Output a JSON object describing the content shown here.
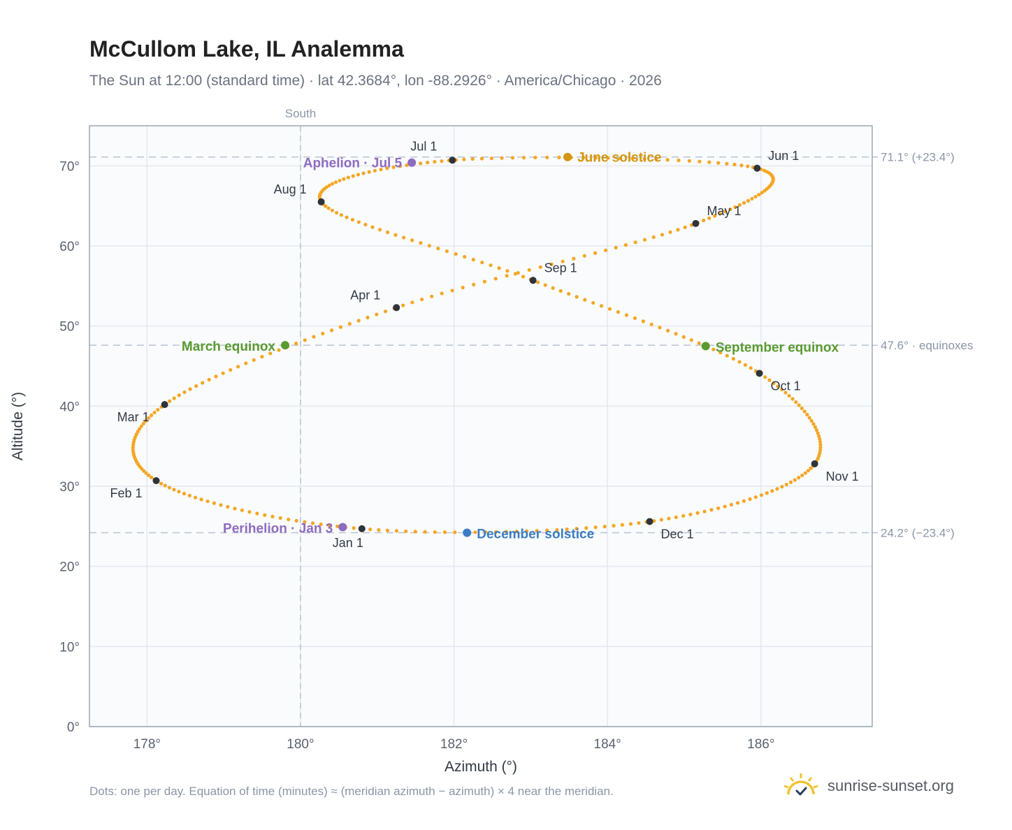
{
  "title": "McCullom Lake, IL Analemma",
  "subtitle": "The Sun at 12:00 (standard time) · lat 42.3684°, lon -88.2926° · America/Chicago · 2026",
  "footnote": "Dots: one per day. Equation of time (minutes) ≈ (meridian azimuth − azimuth) × 4 near the meridian.",
  "brand": "sunrise-sunset.org",
  "colors": {
    "curve": "#f5a623",
    "month_marker": "#2f343b",
    "solstice_june": "#d4950f",
    "solstice_december": "#3b7dc4",
    "equinox": "#5a9a2f",
    "apsis": "#8e6bbf",
    "grid": "#e4e8ee",
    "refline": "#b9c4d2",
    "frame": "#9aa6b5",
    "plot_bg": "#f9fbfd"
  },
  "chart_data": {
    "type": "scatter",
    "title": "McCullom Lake, IL Analemma",
    "xlabel": "Azimuth (°)",
    "ylabel": "Altitude (°)",
    "xlim": [
      177.25,
      187.45
    ],
    "ylim": [
      0,
      75
    ],
    "x_ticks": [
      178,
      180,
      182,
      184,
      186
    ],
    "x_tick_labels": [
      "178°",
      "180°",
      "182°",
      "184°",
      "186°"
    ],
    "y_ticks": [
      0,
      10,
      20,
      30,
      40,
      50,
      60,
      70
    ],
    "y_tick_labels": [
      "0°",
      "10°",
      "20°",
      "30°",
      "40°",
      "50°",
      "60°",
      "70°"
    ],
    "grid": true,
    "south_azimuth": 180,
    "south_label": "South",
    "reference_lines": [
      {
        "altitude": 71.1,
        "label": "71.1° (+23.4°)"
      },
      {
        "altitude": 47.6,
        "label": "47.6° · equinoxes"
      },
      {
        "altitude": 24.2,
        "label": "24.2° (−23.4°)"
      }
    ],
    "analemma_days": 365,
    "month_markers": [
      {
        "label": "Jan 1",
        "azimuth": 180.8,
        "altitude": 24.7
      },
      {
        "label": "Feb 1",
        "azimuth": 178.12,
        "altitude": 30.7
      },
      {
        "label": "Mar 1",
        "azimuth": 178.23,
        "altitude": 40.2
      },
      {
        "label": "Apr 1",
        "azimuth": 181.25,
        "altitude": 52.3
      },
      {
        "label": "May 1",
        "azimuth": 185.15,
        "altitude": 62.8
      },
      {
        "label": "Jun 1",
        "azimuth": 185.95,
        "altitude": 69.7
      },
      {
        "label": "Jul 1",
        "azimuth": 181.98,
        "altitude": 70.7
      },
      {
        "label": "Aug 1",
        "azimuth": 180.27,
        "altitude": 65.5
      },
      {
        "label": "Sep 1",
        "azimuth": 183.03,
        "altitude": 55.7
      },
      {
        "label": "Oct 1",
        "azimuth": 185.98,
        "altitude": 44.1
      },
      {
        "label": "Nov 1",
        "azimuth": 186.7,
        "altitude": 32.8
      },
      {
        "label": "Dec 1",
        "azimuth": 184.55,
        "altitude": 25.6
      }
    ],
    "events": [
      {
        "label": "June solstice",
        "azimuth": 183.48,
        "altitude": 71.1,
        "color": "#d4950f"
      },
      {
        "label": "December solstice",
        "azimuth": 182.17,
        "altitude": 24.2,
        "color": "#3b7dc4"
      },
      {
        "label": "March equinox",
        "azimuth": 179.8,
        "altitude": 47.6,
        "color": "#5a9a2f"
      },
      {
        "label": "September equinox",
        "azimuth": 185.28,
        "altitude": 47.5,
        "color": "#5a9a2f"
      },
      {
        "label": "Aphelion · Jul 5",
        "azimuth": 181.45,
        "altitude": 70.4,
        "color": "#8e6bbf"
      },
      {
        "label": "Perihelion · Jan 3",
        "azimuth": 180.55,
        "altitude": 24.9,
        "color": "#8e6bbf"
      }
    ]
  }
}
